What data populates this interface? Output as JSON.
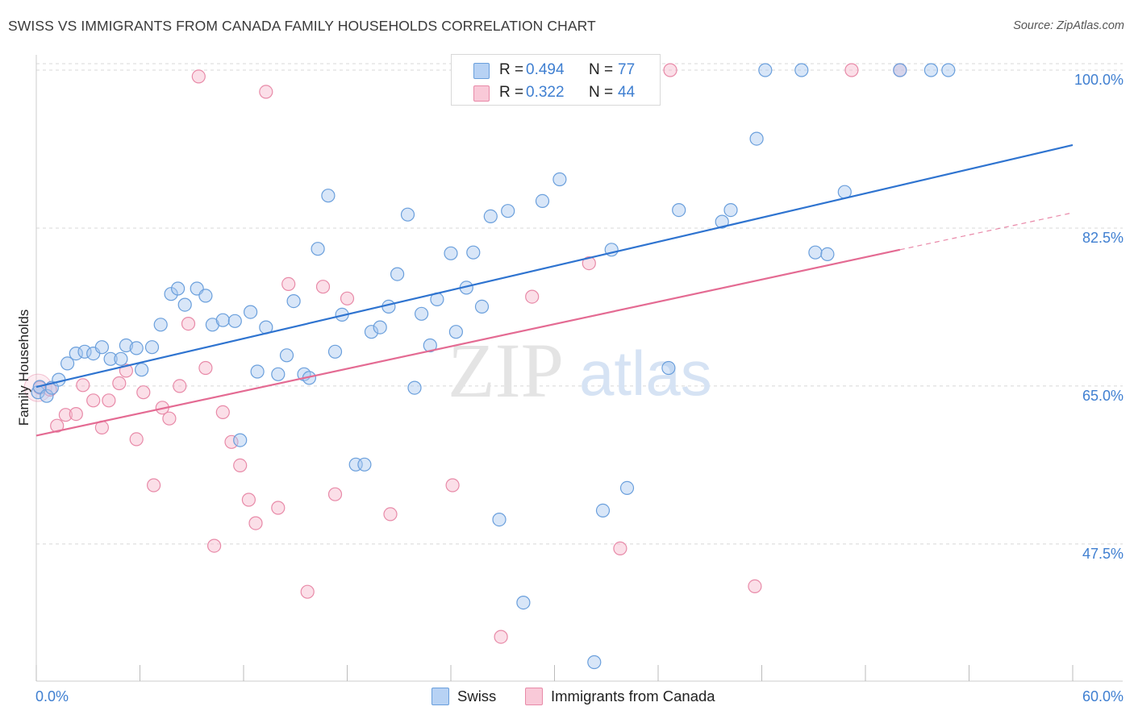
{
  "title": "SWISS VS IMMIGRANTS FROM CANADA FAMILY HOUSEHOLDS CORRELATION CHART",
  "source": "Source: ZipAtlas.com",
  "watermark": {
    "zip": "ZIP",
    "atlas": "atlas"
  },
  "legend": {
    "swiss": {
      "r_label": "R =",
      "r_value": "0.494",
      "n_label": "N =",
      "n_value": "77"
    },
    "canada": {
      "r_label": "R =",
      "r_value": "0.322",
      "n_label": "N =",
      "n_value": "44"
    }
  },
  "bottom_legend": {
    "swiss": "Swiss",
    "canada": "Immigrants from Canada"
  },
  "colors": {
    "swiss_fill": "#a8c8f0",
    "swiss_stroke": "#6a9fdc",
    "swiss_line": "#2f74d0",
    "canada_fill": "#f7b8cb",
    "canada_stroke": "#e88aa8",
    "canada_line": "#e46b93",
    "tick_text": "#3f7fd1",
    "grid": "#d8d8d8"
  },
  "chart_data": {
    "type": "scatter",
    "title": "SWISS VS IMMIGRANTS FROM CANADA FAMILY HOUSEHOLDS CORRELATION CHART",
    "ylabel": "Family Households",
    "xlim": [
      0,
      60
    ],
    "ylim": [
      32.3,
      101.7
    ],
    "x_tick_labels": [
      "0.0%",
      "60.0%"
    ],
    "y_ticks": [
      47.5,
      65.0,
      82.5,
      100.0
    ],
    "y_tick_labels": [
      "47.5%",
      "65.0%",
      "82.5%",
      "100.0%"
    ],
    "grid": true,
    "series": [
      {
        "name": "Swiss",
        "points": [
          [
            0.1,
            64.3
          ],
          [
            0.2,
            64.9
          ],
          [
            0.6,
            63.9
          ],
          [
            0.9,
            64.8
          ],
          [
            1.3,
            65.7
          ],
          [
            1.8,
            67.5
          ],
          [
            2.3,
            68.6
          ],
          [
            2.8,
            68.8
          ],
          [
            3.3,
            68.6
          ],
          [
            3.8,
            69.3
          ],
          [
            4.3,
            68.0
          ],
          [
            4.9,
            68.0
          ],
          [
            5.2,
            69.5
          ],
          [
            5.8,
            69.2
          ],
          [
            6.1,
            66.8
          ],
          [
            6.7,
            69.3
          ],
          [
            7.2,
            71.8
          ],
          [
            7.8,
            75.2
          ],
          [
            8.2,
            75.8
          ],
          [
            8.6,
            74.0
          ],
          [
            9.3,
            75.8
          ],
          [
            9.8,
            75.0
          ],
          [
            10.2,
            71.8
          ],
          [
            10.8,
            72.3
          ],
          [
            11.5,
            72.2
          ],
          [
            11.8,
            59.0
          ],
          [
            12.4,
            73.2
          ],
          [
            12.8,
            66.6
          ],
          [
            13.3,
            71.5
          ],
          [
            14.0,
            66.3
          ],
          [
            14.5,
            68.4
          ],
          [
            14.9,
            74.4
          ],
          [
            15.5,
            66.3
          ],
          [
            15.8,
            65.9
          ],
          [
            16.3,
            80.2
          ],
          [
            16.9,
            86.1
          ],
          [
            17.3,
            68.8
          ],
          [
            17.7,
            72.9
          ],
          [
            18.5,
            56.3
          ],
          [
            19.0,
            56.3
          ],
          [
            19.4,
            71.0
          ],
          [
            19.9,
            71.5
          ],
          [
            20.4,
            73.8
          ],
          [
            20.9,
            77.4
          ],
          [
            21.5,
            84.0
          ],
          [
            21.9,
            64.8
          ],
          [
            22.3,
            73.0
          ],
          [
            22.8,
            69.5
          ],
          [
            23.2,
            74.6
          ],
          [
            24.0,
            79.7
          ],
          [
            24.3,
            71.0
          ],
          [
            24.9,
            75.9
          ],
          [
            25.3,
            79.8
          ],
          [
            25.8,
            73.8
          ],
          [
            26.3,
            83.8
          ],
          [
            26.8,
            50.2
          ],
          [
            27.3,
            84.4
          ],
          [
            28.2,
            41.0
          ],
          [
            29.3,
            85.5
          ],
          [
            30.3,
            87.9
          ],
          [
            31.0,
            100.0
          ],
          [
            32.3,
            34.4
          ],
          [
            32.8,
            51.2
          ],
          [
            33.3,
            80.1
          ],
          [
            34.2,
            53.7
          ],
          [
            35.0,
            100.0
          ],
          [
            36.6,
            67.0
          ],
          [
            37.2,
            84.5
          ],
          [
            39.7,
            83.2
          ],
          [
            40.2,
            84.5
          ],
          [
            41.7,
            92.4
          ],
          [
            42.2,
            100.0
          ],
          [
            44.3,
            100.0
          ],
          [
            45.1,
            79.8
          ],
          [
            45.8,
            79.6
          ],
          [
            46.8,
            86.5
          ],
          [
            50.0,
            100.0
          ],
          [
            51.8,
            100.0
          ],
          [
            52.8,
            100.0
          ]
        ]
      },
      {
        "name": "Immigrants from Canada",
        "points": [
          [
            0.2,
            64.8
          ],
          [
            0.8,
            64.6
          ],
          [
            1.2,
            60.6
          ],
          [
            1.7,
            61.8
          ],
          [
            2.3,
            61.9
          ],
          [
            2.7,
            65.1
          ],
          [
            3.3,
            63.4
          ],
          [
            3.8,
            60.4
          ],
          [
            4.2,
            63.4
          ],
          [
            4.8,
            65.3
          ],
          [
            5.2,
            66.7
          ],
          [
            5.8,
            59.1
          ],
          [
            6.2,
            64.3
          ],
          [
            6.8,
            54.0
          ],
          [
            7.3,
            62.6
          ],
          [
            7.7,
            61.4
          ],
          [
            8.3,
            65.0
          ],
          [
            8.8,
            71.9
          ],
          [
            9.4,
            99.3
          ],
          [
            9.8,
            67.0
          ],
          [
            10.3,
            47.3
          ],
          [
            10.8,
            62.1
          ],
          [
            11.3,
            58.8
          ],
          [
            11.8,
            56.2
          ],
          [
            12.3,
            52.4
          ],
          [
            12.7,
            49.8
          ],
          [
            13.3,
            97.6
          ],
          [
            14.0,
            51.5
          ],
          [
            14.6,
            76.3
          ],
          [
            15.7,
            42.2
          ],
          [
            16.6,
            76.0
          ],
          [
            17.3,
            53.0
          ],
          [
            18.0,
            74.7
          ],
          [
            20.5,
            50.8
          ],
          [
            24.1,
            54.0
          ],
          [
            26.9,
            37.2
          ],
          [
            28.7,
            74.9
          ],
          [
            32.0,
            78.6
          ],
          [
            32.8,
            100.0
          ],
          [
            33.8,
            47.0
          ],
          [
            36.7,
            100.0
          ],
          [
            41.6,
            42.8
          ],
          [
            47.2,
            100.0
          ],
          [
            50.0,
            100.0
          ]
        ]
      }
    ],
    "trend_lines": [
      {
        "name": "Swiss",
        "x": [
          0,
          60
        ],
        "y": [
          64.9,
          91.7
        ]
      },
      {
        "name": "Immigrants from Canada",
        "solid_x": [
          0,
          50
        ],
        "solid_y": [
          59.5,
          80.1
        ],
        "dashed_x": [
          50,
          60
        ],
        "dashed_y": [
          80.1,
          84.2
        ]
      }
    ]
  }
}
